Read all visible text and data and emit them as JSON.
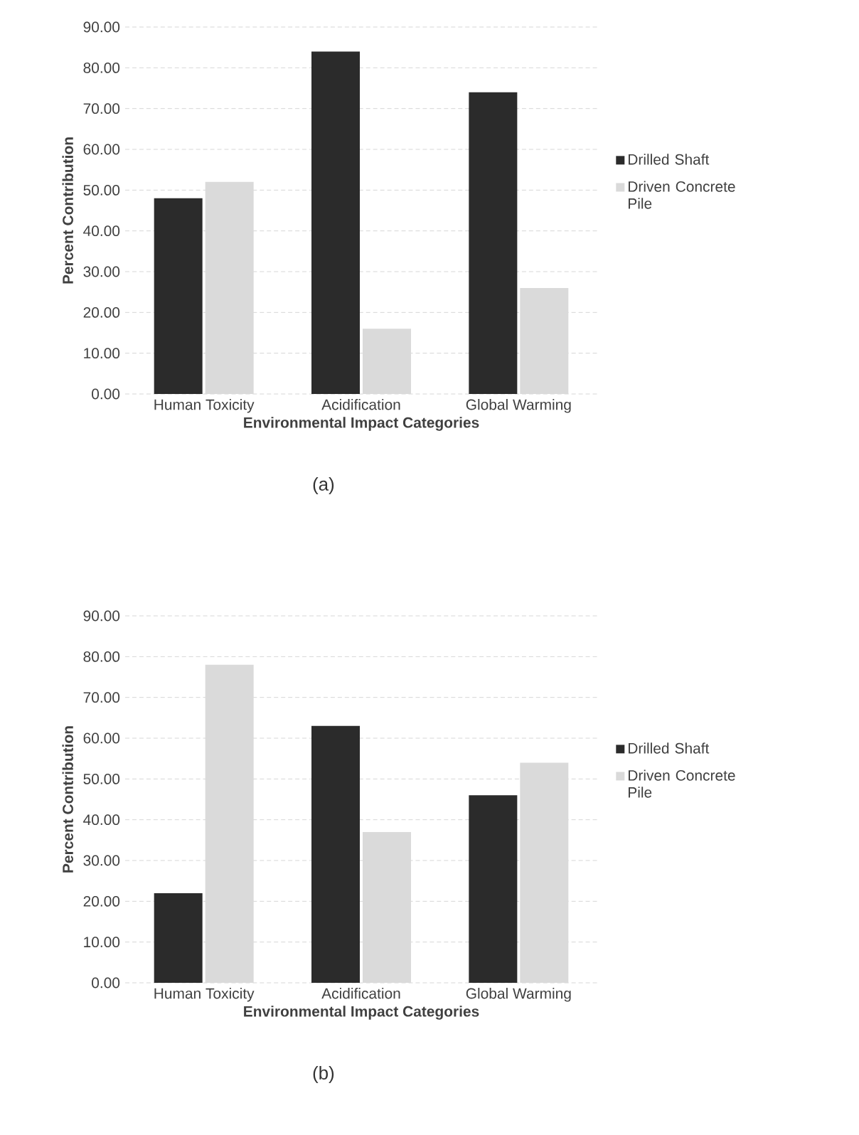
{
  "chart_data": [
    {
      "type": "bar",
      "categories": [
        "Human Toxicity",
        "Acidification",
        "Global Warming"
      ],
      "xlabel": "Environmental Impact Categories",
      "ylabel": "Percent Contribution",
      "ylim": [
        0,
        90
      ],
      "yticks": [
        {
          "value": 0,
          "label": "0.00"
        },
        {
          "value": 10,
          "label": "10.00"
        },
        {
          "value": 20,
          "label": "20.00"
        },
        {
          "value": 30,
          "label": "30.00"
        },
        {
          "value": 40,
          "label": "40.00"
        },
        {
          "value": 50,
          "label": "50.00"
        },
        {
          "value": 60,
          "label": "60.00"
        },
        {
          "value": 70,
          "label": "70.00"
        },
        {
          "value": 80,
          "label": "80.00"
        },
        {
          "value": 90,
          "label": "90.00"
        }
      ],
      "grid": "y",
      "legend": "right",
      "series": [
        {
          "name": "Drilled Shaft",
          "color": "#2b2b2b",
          "values": [
            48,
            84,
            74
          ]
        },
        {
          "name": "Driven Concrete Pile",
          "color": "#dadada",
          "values": [
            52,
            16,
            26
          ]
        }
      ],
      "annotations": [
        "(a)"
      ]
    },
    {
      "type": "bar",
      "categories": [
        "Human Toxicity",
        "Acidification",
        "Global Warming"
      ],
      "xlabel": "Environmental Impact Categories",
      "ylabel": "Percent Contribution",
      "ylim": [
        0,
        90
      ],
      "yticks": [
        {
          "value": 0,
          "label": "0.00"
        },
        {
          "value": 10,
          "label": "10.00"
        },
        {
          "value": 20,
          "label": "20.00"
        },
        {
          "value": 30,
          "label": "30.00"
        },
        {
          "value": 40,
          "label": "40.00"
        },
        {
          "value": 50,
          "label": "50.00"
        },
        {
          "value": 60,
          "label": "60.00"
        },
        {
          "value": 70,
          "label": "70.00"
        },
        {
          "value": 80,
          "label": "80.00"
        },
        {
          "value": 90,
          "label": "90.00"
        }
      ],
      "grid": "y",
      "legend": "right",
      "series": [
        {
          "name": "Drilled Shaft",
          "color": "#2b2b2b",
          "values": [
            22,
            63,
            46
          ]
        },
        {
          "name": "Driven Concrete Pile",
          "color": "#dadada",
          "values": [
            78,
            37,
            54
          ]
        }
      ],
      "annotations": [
        "(b)"
      ]
    }
  ]
}
